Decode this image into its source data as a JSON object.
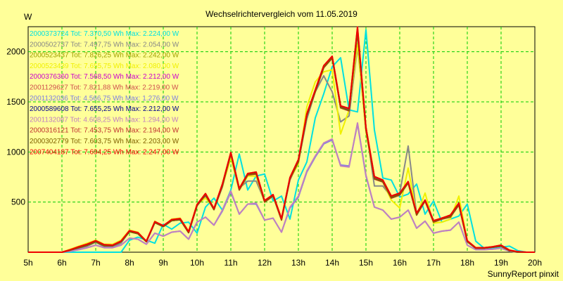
{
  "chart_data": {
    "type": "line",
    "title": "Wechselrichtervergleich vom 11.05.2019",
    "ylabel": "W",
    "xlabel": "",
    "footer": "SunnyReport pinxit",
    "ylim": [
      0,
      2250
    ],
    "xlim": [
      5,
      20
    ],
    "yticks": [
      500,
      1000,
      1500,
      2000
    ],
    "xticks": [
      "5h",
      "6h",
      "7h",
      "8h",
      "9h",
      "10h",
      "11h",
      "12h",
      "13h",
      "14h",
      "15h",
      "16h",
      "17h",
      "18h",
      "19h",
      "20h"
    ],
    "grid": true,
    "legend_position": "top-left",
    "x": [
      5.0,
      5.25,
      5.5,
      5.75,
      6.0,
      6.25,
      6.5,
      6.75,
      7.0,
      7.25,
      7.5,
      7.75,
      8.0,
      8.25,
      8.5,
      8.75,
      9.0,
      9.25,
      9.5,
      9.75,
      10.0,
      10.25,
      10.5,
      10.75,
      11.0,
      11.25,
      11.5,
      11.75,
      12.0,
      12.25,
      12.5,
      12.75,
      13.0,
      13.25,
      13.5,
      13.75,
      14.0,
      14.25,
      14.5,
      14.75,
      15.0,
      15.25,
      15.5,
      15.75,
      16.0,
      16.25,
      16.5,
      16.75,
      17.0,
      17.25,
      17.5,
      17.75,
      18.0,
      18.25,
      18.5,
      18.75,
      19.0,
      19.25,
      19.5,
      19.75,
      20.0
    ],
    "series": [
      {
        "name": "2000373724 Tot: 7.370,50 Wh Max: 2.224,00 W",
        "color": "#00e0e0",
        "values": [
          0,
          0,
          0,
          0,
          0,
          0,
          0,
          0,
          0,
          0,
          0,
          0,
          120,
          150,
          120,
          90,
          280,
          230,
          290,
          300,
          190,
          450,
          540,
          420,
          620,
          980,
          620,
          760,
          780,
          510,
          560,
          330,
          720,
          900,
          1340,
          1580,
          1850,
          1940,
          1420,
          1400,
          2220,
          1220,
          740,
          720,
          550,
          580,
          680,
          380,
          510,
          300,
          330,
          360,
          480,
          110,
          40,
          40,
          50,
          60,
          15,
          0,
          0
        ]
      },
      {
        "name": "2000502737 Tot: 7.497,75 Wh Max: 2.054,00 W",
        "color": "#888888",
        "values": [
          0,
          0,
          0,
          0,
          0,
          15,
          40,
          60,
          100,
          55,
          50,
          90,
          210,
          190,
          110,
          300,
          260,
          320,
          320,
          200,
          470,
          560,
          430,
          650,
          980,
          640,
          710,
          710,
          510,
          560,
          330,
          720,
          900,
          1330,
          1600,
          1760,
          1600,
          1300,
          1360,
          2050,
          1250,
          660,
          660,
          550,
          590,
          1060,
          380,
          510,
          300,
          330,
          360,
          480,
          110,
          40,
          40,
          50,
          60,
          15,
          0,
          0,
          0
        ]
      },
      {
        "name": "2000523437 Tot: 7.826,25 Wh Max: 2.242,00 W",
        "color": "#a0a000",
        "values": [
          0,
          0,
          0,
          0,
          0,
          25,
          55,
          80,
          110,
          70,
          70,
          110,
          210,
          190,
          110,
          300,
          260,
          320,
          330,
          200,
          470,
          580,
          430,
          680,
          990,
          630,
          780,
          800,
          510,
          570,
          330,
          740,
          920,
          1380,
          1620,
          1860,
          1950,
          1460,
          1430,
          2240,
          1240,
          750,
          720,
          560,
          590,
          700,
          390,
          520,
          310,
          340,
          370,
          490,
          110,
          45,
          45,
          55,
          70,
          20,
          5,
          0,
          0
        ]
      },
      {
        "name": "2000523439 Tot: 7.655,75 Wh Max: 2.080,00 W",
        "color": "#f0f000",
        "values": [
          0,
          0,
          0,
          0,
          0,
          30,
          60,
          90,
          120,
          80,
          80,
          120,
          220,
          200,
          110,
          310,
          260,
          330,
          340,
          210,
          480,
          540,
          440,
          660,
          940,
          620,
          760,
          760,
          500,
          560,
          320,
          730,
          880,
          1450,
          1700,
          1800,
          1820,
          1180,
          1420,
          2080,
          1200,
          740,
          700,
          520,
          440,
          840,
          370,
          590,
          290,
          300,
          330,
          560,
          110,
          40,
          40,
          50,
          60,
          15,
          0,
          0,
          0
        ]
      },
      {
        "name": "2000376360 Tot: 7.568,50 Wh Max: 2.212,00 W",
        "color": "#cc00cc",
        "values": [
          0,
          0,
          0,
          0,
          0,
          20,
          45,
          70,
          110,
          70,
          70,
          110,
          210,
          190,
          110,
          300,
          260,
          320,
          330,
          200,
          470,
          580,
          430,
          670,
          990,
          630,
          780,
          790,
          510,
          570,
          330,
          730,
          910,
          1370,
          1610,
          1850,
          1950,
          1450,
          1420,
          2210,
          1230,
          740,
          710,
          550,
          580,
          700,
          380,
          520,
          310,
          340,
          360,
          480,
          110,
          40,
          40,
          50,
          60,
          15,
          0,
          0,
          0
        ]
      },
      {
        "name": "2001129627 Tot: 7.821,88 Wh Max: 2.219,00 W",
        "color": "#d05050",
        "values": [
          0,
          0,
          0,
          0,
          0,
          25,
          55,
          80,
          115,
          75,
          70,
          110,
          215,
          195,
          110,
          305,
          265,
          325,
          335,
          205,
          475,
          585,
          435,
          680,
          995,
          635,
          785,
          800,
          515,
          575,
          335,
          745,
          925,
          1380,
          1620,
          1860,
          1955,
          1460,
          1435,
          2220,
          1245,
          755,
          720,
          560,
          590,
          705,
          390,
          520,
          315,
          340,
          370,
          490,
          115,
          45,
          45,
          55,
          70,
          20,
          5,
          0,
          0
        ]
      },
      {
        "name": "2001132036 Tot: 4.566,75 Wh Max: 1.276,00 W",
        "color": "#8080e0",
        "values": [
          0,
          0,
          0,
          0,
          0,
          10,
          25,
          45,
          70,
          45,
          45,
          70,
          140,
          130,
          80,
          190,
          160,
          200,
          210,
          130,
          300,
          350,
          270,
          410,
          600,
          380,
          480,
          480,
          320,
          340,
          200,
          440,
          550,
          800,
          950,
          1080,
          1120,
          870,
          860,
          1280,
          760,
          450,
          420,
          330,
          350,
          420,
          240,
          310,
          190,
          210,
          220,
          300,
          70,
          25,
          25,
          30,
          40,
          10,
          0,
          0,
          0
        ]
      },
      {
        "name": "2000589608 Tot: 7.655,25 Wh Max: 2.212,00 W",
        "color": "#000090",
        "values": [
          0,
          0,
          0,
          0,
          0,
          20,
          45,
          70,
          105,
          65,
          65,
          105,
          205,
          185,
          105,
          295,
          255,
          315,
          325,
          195,
          465,
          575,
          425,
          665,
          985,
          625,
          775,
          790,
          505,
          565,
          325,
          735,
          905,
          1365,
          1605,
          1845,
          1945,
          1445,
          1415,
          2205,
          1225,
          735,
          705,
          545,
          575,
          695,
          375,
          515,
          305,
          335,
          355,
          475,
          105,
          40,
          40,
          50,
          60,
          15,
          0,
          0,
          0
        ]
      },
      {
        "name": "2001132087 Tot: 4.608,25 Wh Max: 1.294,00 W",
        "color": "#c080c0",
        "values": [
          0,
          0,
          0,
          0,
          0,
          10,
          25,
          45,
          70,
          45,
          45,
          70,
          140,
          130,
          80,
          190,
          160,
          200,
          210,
          130,
          300,
          350,
          270,
          420,
          610,
          380,
          480,
          490,
          320,
          340,
          200,
          450,
          560,
          810,
          960,
          1090,
          1130,
          860,
          850,
          1290,
          770,
          450,
          420,
          330,
          350,
          420,
          240,
          310,
          190,
          210,
          220,
          300,
          70,
          25,
          25,
          30,
          40,
          10,
          0,
          0,
          0
        ]
      },
      {
        "name": "2000316121 Tot: 7.453,75 Wh Max: 2.194,00 W",
        "color": "#c03030",
        "values": [
          0,
          0,
          0,
          0,
          0,
          20,
          45,
          70,
          105,
          65,
          65,
          105,
          205,
          185,
          105,
          295,
          255,
          315,
          325,
          195,
          465,
          570,
          425,
          660,
          980,
          620,
          770,
          780,
          500,
          560,
          320,
          730,
          900,
          1360,
          1600,
          1840,
          1935,
          1440,
          1410,
          2190,
          1220,
          730,
          700,
          540,
          570,
          690,
          370,
          510,
          300,
          330,
          350,
          470,
          105,
          40,
          40,
          50,
          60,
          15,
          0,
          0,
          0
        ]
      },
      {
        "name": "2000302779 Tot: 7.603,75 Wh Max: 2.203,00 W",
        "color": "#806000",
        "values": [
          0,
          0,
          0,
          0,
          0,
          20,
          45,
          70,
          105,
          65,
          65,
          105,
          205,
          185,
          105,
          295,
          255,
          315,
          325,
          195,
          465,
          575,
          425,
          665,
          985,
          625,
          775,
          785,
          505,
          565,
          325,
          735,
          905,
          1365,
          1605,
          1845,
          1940,
          1445,
          1415,
          2200,
          1225,
          735,
          705,
          545,
          575,
          695,
          375,
          515,
          305,
          335,
          355,
          475,
          105,
          40,
          40,
          50,
          60,
          15,
          0,
          0,
          0
        ]
      },
      {
        "name": "2007404187 Tot: 7.694,25 Wh Max: 2.247,00 W",
        "color": "#ee0000",
        "values": [
          0,
          0,
          0,
          0,
          0,
          25,
          55,
          80,
          115,
          75,
          70,
          110,
          215,
          195,
          110,
          305,
          265,
          325,
          335,
          205,
          475,
          585,
          435,
          680,
          995,
          635,
          785,
          800,
          515,
          575,
          335,
          745,
          925,
          1380,
          1620,
          1860,
          1955,
          1460,
          1435,
          2247,
          1245,
          755,
          720,
          560,
          590,
          705,
          390,
          520,
          315,
          340,
          370,
          490,
          115,
          45,
          45,
          55,
          70,
          20,
          5,
          0,
          0
        ]
      }
    ]
  }
}
